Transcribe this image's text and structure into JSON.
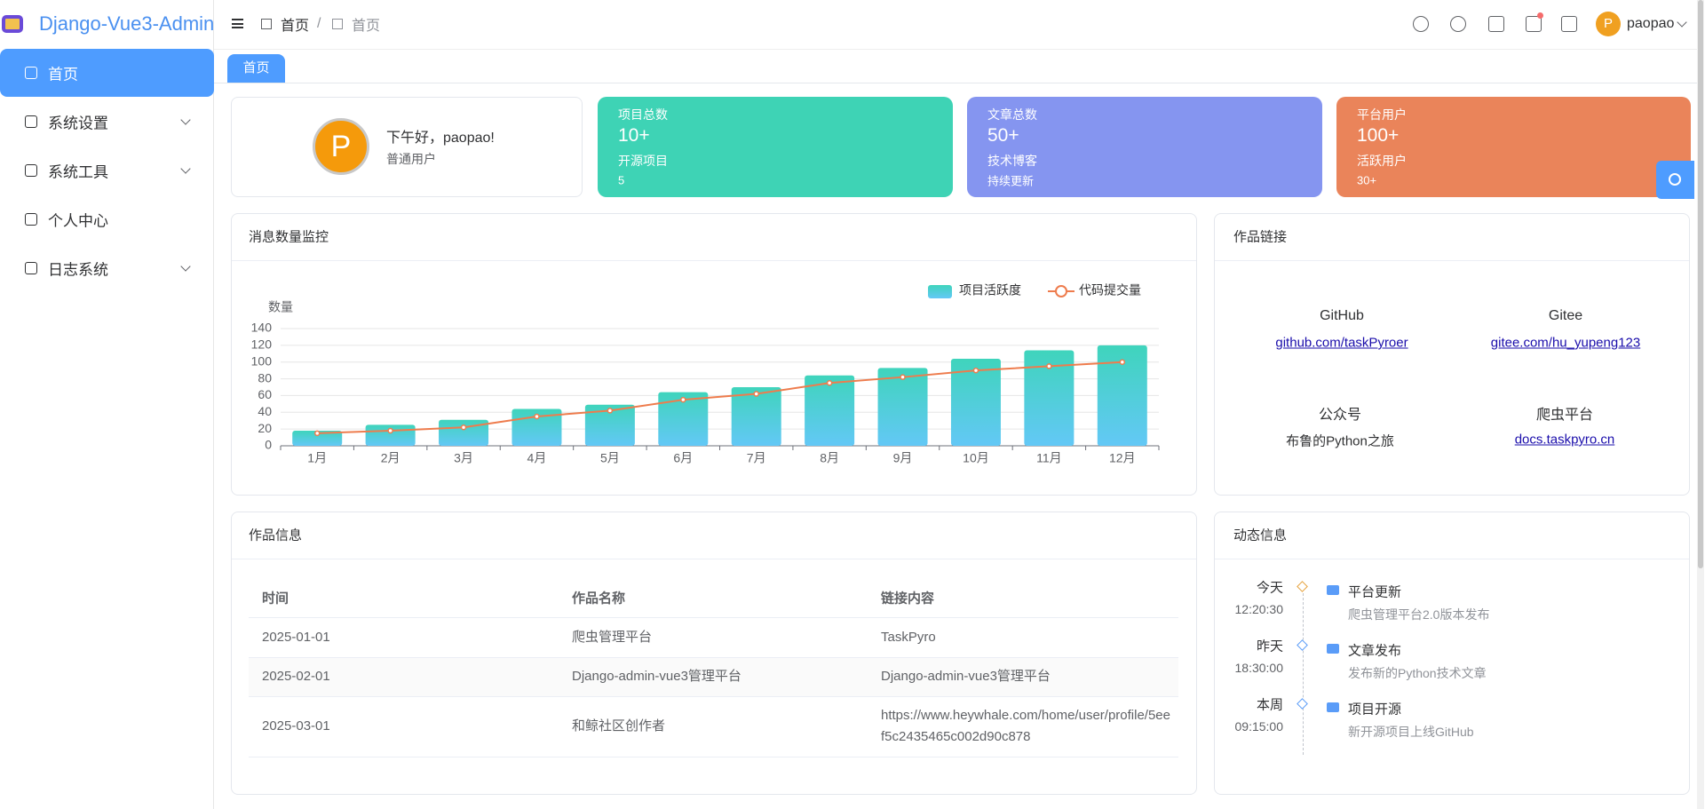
{
  "sidebar": {
    "brand": "Django-Vue3-Admin",
    "menu": [
      "首页",
      "系统设置",
      "系统工具",
      "个人中心",
      "日志系统"
    ]
  },
  "header": {
    "breadcrumb": [
      "首页",
      "首页"
    ],
    "avatar": "P",
    "user": "paopao"
  },
  "tabs": [
    "首页"
  ],
  "welcome": {
    "avatar": "P",
    "greeting": "下午好，paopao!",
    "role": "普通用户"
  },
  "stats": [
    {
      "title": "项目总数",
      "value": "10+",
      "label": "开源项目",
      "sub": "5",
      "color": "#3ed3b5"
    },
    {
      "title": "文章总数",
      "value": "50+",
      "label": "技术博客",
      "sub": "持续更新",
      "color": "#8595f0"
    },
    {
      "title": "平台用户",
      "value": "100+",
      "label": "活跃用户",
      "sub": "30+",
      "color": "#ea845a"
    }
  ],
  "chart_data": {
    "type": "bar",
    "title": "消息数量监控",
    "y_label": "数量",
    "categories": [
      "1月",
      "2月",
      "3月",
      "4月",
      "5月",
      "6月",
      "7月",
      "8月",
      "9月",
      "10月",
      "11月",
      "12月"
    ],
    "series": [
      {
        "name": "项目活跃度",
        "color": "#3fd4bc",
        "values": [
          18,
          25,
          31,
          44,
          49,
          64,
          70,
          84,
          93,
          104,
          114,
          120
        ]
      },
      {
        "name": "代码提交量",
        "color": "#ee7c4d",
        "type": "line",
        "values": [
          15,
          18,
          22,
          35,
          42,
          55,
          62,
          75,
          82,
          90,
          95,
          100
        ]
      }
    ],
    "ylim": [
      0,
      140
    ],
    "yticks": [
      0,
      20,
      40,
      60,
      80,
      100,
      120,
      140
    ],
    "grid": true,
    "legend": "top-right"
  },
  "links": {
    "title": "作品链接",
    "items": [
      {
        "name": "GitHub",
        "link": "github.com/taskPyroer"
      },
      {
        "name": "Gitee",
        "link": "gitee.com/hu_yupeng123"
      },
      {
        "name": "公众号",
        "text": "布鲁的Python之旅"
      },
      {
        "name": "爬虫平台",
        "link": "docs.taskpyro.cn"
      }
    ]
  },
  "works": {
    "title": "作品信息",
    "columns": [
      "时间",
      "作品名称",
      "链接内容"
    ],
    "rows": [
      [
        "2025-01-01",
        "爬虫管理平台",
        "TaskPyro"
      ],
      [
        "2025-02-01",
        "Django-admin-vue3管理平台",
        "Django-admin-vue3管理平台"
      ],
      [
        "2025-03-01",
        "和鲸社区创作者",
        "https://www.heywhale.com/home/user/profile/5eef5c2435465c002d90c878"
      ]
    ]
  },
  "timeline": {
    "title": "动态信息",
    "items": [
      {
        "day": "今天",
        "time": "12:20:30",
        "title": "平台更新",
        "desc": "爬虫管理平台2.0版本发布",
        "color": "#e6a23c"
      },
      {
        "day": "昨天",
        "time": "18:30:00",
        "title": "文章发布",
        "desc": "发布新的Python技术文章",
        "color": "#5a9cf8"
      },
      {
        "day": "本周",
        "time": "09:15:00",
        "title": "项目开源",
        "desc": "新开源项目上线GitHub",
        "color": "#5a9cf8"
      }
    ]
  }
}
